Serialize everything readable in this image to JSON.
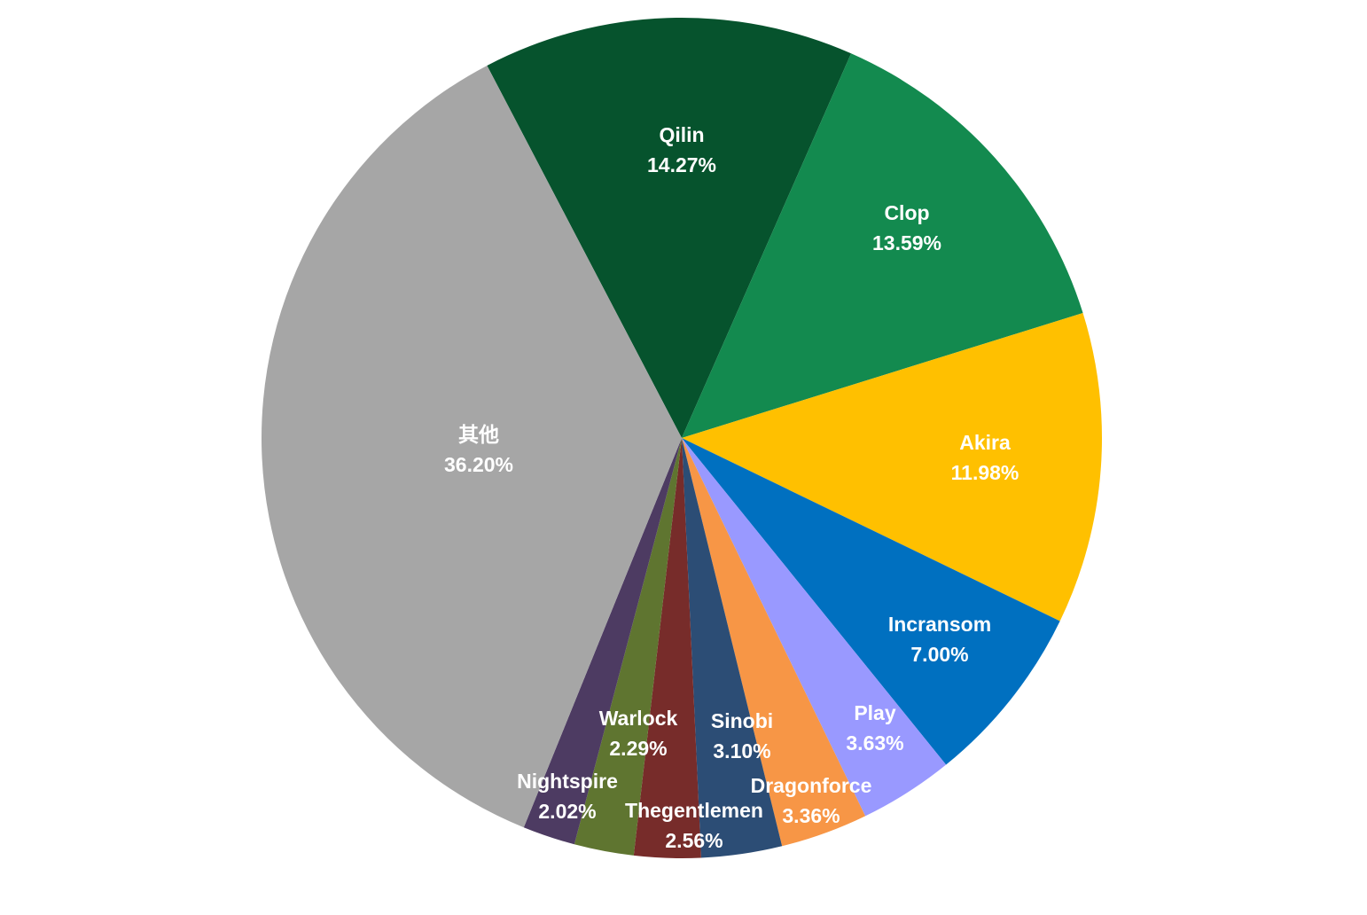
{
  "chart_data": {
    "type": "pie",
    "title": "",
    "start_angle_deg": -27.6,
    "direction": "clockwise",
    "slices": [
      {
        "label": "Qilin",
        "value": 14.27,
        "display": "14.27%",
        "color": "#06532D"
      },
      {
        "label": "Clop",
        "value": 13.59,
        "display": "13.59%",
        "color": "#138A4F"
      },
      {
        "label": "Akira",
        "value": 11.98,
        "display": "11.98%",
        "color": "#FFC000"
      },
      {
        "label": "Incransom",
        "value": 7.0,
        "display": "7.00%",
        "color": "#0070C0"
      },
      {
        "label": "Play",
        "value": 3.63,
        "display": "3.63%",
        "color": "#9999FF"
      },
      {
        "label": "Dragonforce",
        "value": 3.36,
        "display": "3.36%",
        "color": "#F79646"
      },
      {
        "label": "Sinobi",
        "value": 3.1,
        "display": "3.10%",
        "color": "#2C4D75"
      },
      {
        "label": "Thegentlemen",
        "value": 2.56,
        "display": "2.56%",
        "color": "#772C2A"
      },
      {
        "label": "Warlock",
        "value": 2.29,
        "display": "2.29%",
        "color": "#5F7530"
      },
      {
        "label": "Nightspire",
        "value": 2.02,
        "display": "2.02%",
        "color": "#4D3B62"
      },
      {
        "label": "其他",
        "value": 36.2,
        "display": "36.20%",
        "color": "#A6A6A6"
      }
    ]
  }
}
